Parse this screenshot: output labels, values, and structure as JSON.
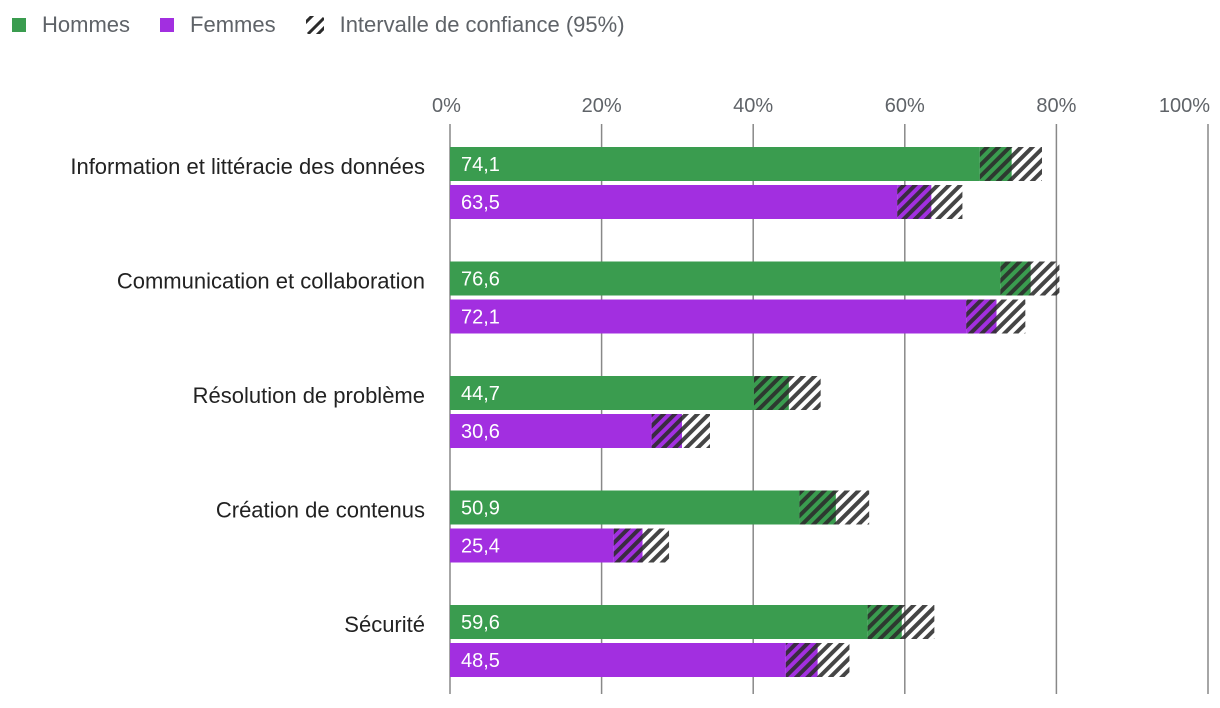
{
  "legend": {
    "men": "Hommes",
    "women": "Femmes",
    "ci": "Intervalle de confiance (95%)"
  },
  "colors": {
    "men": "#3a9c4f",
    "women": "#a22fe0",
    "grid": "#888888",
    "hatch": "#2b2b2b"
  },
  "chart_data": {
    "type": "bar",
    "orientation": "horizontal",
    "title": "",
    "xlabel": "",
    "ylabel": "",
    "xlim": [
      0,
      100
    ],
    "ticks": [
      0,
      20,
      40,
      60,
      80,
      100
    ],
    "tick_labels": [
      "0%",
      "20%",
      "40%",
      "60%",
      "80%",
      "100%"
    ],
    "categories": [
      "Information et littéracie des données",
      "Communication et collaboration",
      "Résolution de problème",
      "Création de contenus",
      "Sécurité"
    ],
    "series": [
      {
        "name": "Hommes",
        "values": [
          74.1,
          76.6,
          44.7,
          50.9,
          59.6
        ],
        "labels": [
          "74,1",
          "76,6",
          "44,7",
          "50,9",
          "59,6"
        ],
        "ci_low": [
          69.9,
          72.6,
          40.1,
          46.1,
          55.1
        ],
        "ci_high": [
          78.1,
          80.4,
          48.9,
          55.3,
          63.9
        ]
      },
      {
        "name": "Femmes",
        "values": [
          63.5,
          72.1,
          30.6,
          25.4,
          48.5
        ],
        "labels": [
          "63,5",
          "72,1",
          "30,6",
          "25,4",
          "48,5"
        ],
        "ci_low": [
          59.0,
          68.1,
          26.6,
          21.6,
          44.3
        ],
        "ci_high": [
          67.6,
          75.9,
          34.3,
          28.9,
          52.7
        ]
      }
    ],
    "legend_position": "top-left",
    "grid": true
  }
}
